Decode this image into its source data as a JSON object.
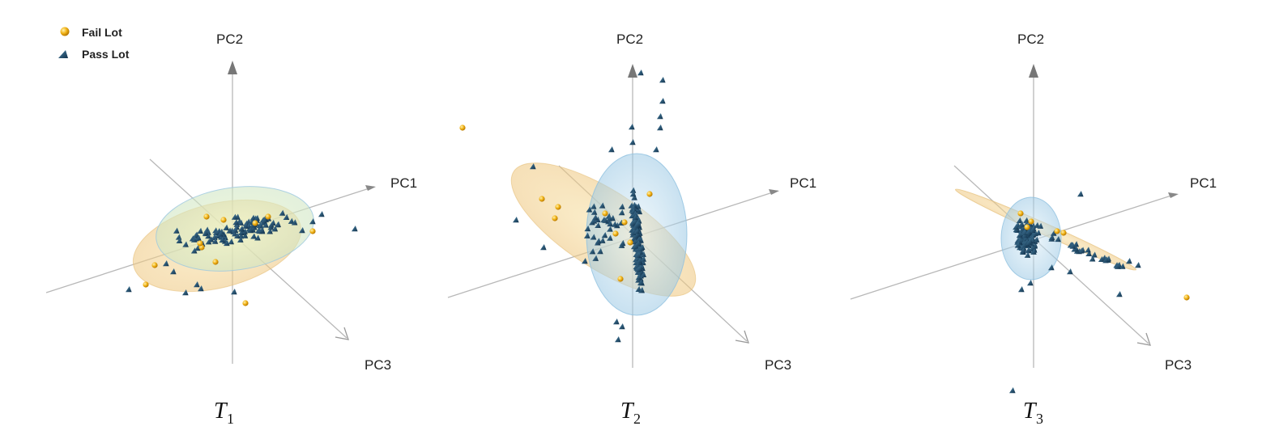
{
  "chart_data": {
    "type": "scatter",
    "subtype": "3d-pca",
    "legend": [
      {
        "name": "Fail Lot",
        "marker": "sphere",
        "color": "#f0b020"
      },
      {
        "name": "Pass Lot",
        "marker": "triangle",
        "color": "#1f4e6e"
      }
    ],
    "legend_position": "top-left",
    "axis_labels": {
      "pc1": "PC1",
      "pc2": "PC2",
      "pc3": "PC3"
    },
    "colors": {
      "fail": "#f0b020",
      "pass": "#1f4e6e",
      "fail_ellipse": "#f2c77a",
      "pass_ellipse": "#9fcbe6",
      "axis": "#9a9a9a"
    },
    "panels": [
      {
        "title": "T",
        "subscript": "1"
      },
      {
        "title": "T",
        "subscript": "2"
      },
      {
        "title": "T",
        "subscript": "3"
      }
    ]
  }
}
